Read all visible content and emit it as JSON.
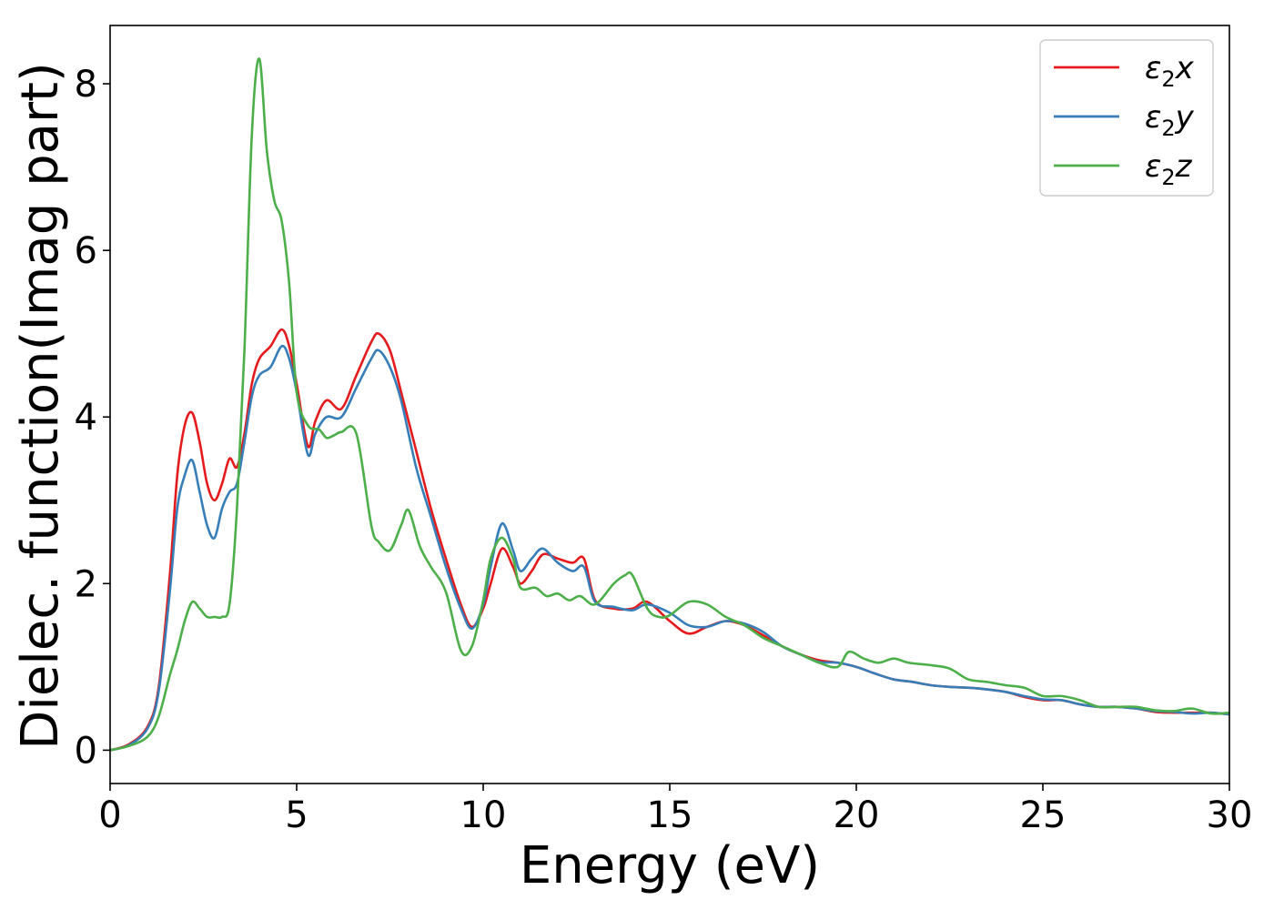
{
  "chart_data": {
    "type": "line",
    "title": "",
    "xlabel": "Energy (eV)",
    "ylabel": "Dielec. function(Imag part)",
    "xlim": [
      0,
      30
    ],
    "ylim": [
      -0.4,
      8.7
    ],
    "xticks": [
      0,
      5,
      10,
      15,
      20,
      25,
      30
    ],
    "yticks": [
      0,
      2,
      4,
      6,
      8
    ],
    "xtick_labels": [
      "0",
      "5",
      "10",
      "15",
      "20",
      "25",
      "30"
    ],
    "ytick_labels": [
      "0",
      "2",
      "4",
      "6",
      "8"
    ],
    "grid": false,
    "legend_position": "top-right",
    "series": [
      {
        "name": "ε₂x",
        "legend_base": "ε",
        "legend_sub": "2",
        "legend_var": "x",
        "color": "#e41a1c",
        "x": [
          0,
          0.5,
          1.0,
          1.3,
          1.6,
          1.8,
          2.0,
          2.2,
          2.4,
          2.6,
          2.8,
          3.0,
          3.2,
          3.4,
          3.6,
          3.8,
          4.0,
          4.3,
          4.6,
          4.8,
          5.0,
          5.3,
          5.5,
          5.8,
          6.2,
          6.6,
          7.0,
          7.2,
          7.5,
          7.8,
          8.2,
          8.6,
          9.0,
          9.4,
          9.7,
          10.0,
          10.2,
          10.5,
          10.8,
          11.0,
          11.3,
          11.6,
          12.0,
          12.4,
          12.7,
          13.0,
          13.5,
          14.0,
          14.4,
          15.0,
          15.5,
          16.0,
          16.5,
          17.0,
          17.5,
          18.0,
          18.5,
          19.0,
          19.5,
          20.0,
          20.5,
          21.0,
          21.5,
          22.0,
          22.5,
          23.0,
          23.5,
          24.0,
          24.5,
          25.0,
          25.5,
          26.0,
          26.5,
          27.0,
          27.5,
          28.0,
          28.5,
          29.0,
          29.5,
          30.0
        ],
        "y": [
          0.0,
          0.07,
          0.28,
          0.75,
          2.1,
          3.3,
          3.9,
          4.05,
          3.7,
          3.2,
          3.0,
          3.2,
          3.5,
          3.4,
          3.8,
          4.4,
          4.7,
          4.85,
          5.05,
          4.85,
          4.4,
          3.65,
          3.95,
          4.2,
          4.1,
          4.5,
          4.9,
          5.0,
          4.8,
          4.3,
          3.6,
          2.9,
          2.3,
          1.75,
          1.48,
          1.7,
          2.0,
          2.42,
          2.2,
          2.0,
          2.15,
          2.35,
          2.3,
          2.25,
          2.3,
          1.8,
          1.7,
          1.7,
          1.78,
          1.55,
          1.4,
          1.48,
          1.55,
          1.5,
          1.38,
          1.25,
          1.15,
          1.08,
          1.05,
          1.0,
          0.92,
          0.85,
          0.82,
          0.78,
          0.76,
          0.75,
          0.73,
          0.7,
          0.64,
          0.6,
          0.6,
          0.55,
          0.52,
          0.52,
          0.5,
          0.46,
          0.45,
          0.45,
          0.45,
          0.43
        ]
      },
      {
        "name": "ε₂y",
        "legend_base": "ε",
        "legend_sub": "2",
        "legend_var": "y",
        "color": "#377eb8",
        "x": [
          0,
          0.5,
          1.0,
          1.3,
          1.6,
          1.8,
          2.0,
          2.2,
          2.4,
          2.6,
          2.8,
          3.0,
          3.2,
          3.4,
          3.6,
          3.8,
          4.0,
          4.3,
          4.6,
          4.8,
          5.0,
          5.3,
          5.5,
          5.8,
          6.2,
          6.6,
          7.0,
          7.2,
          7.5,
          7.8,
          8.2,
          8.6,
          9.0,
          9.4,
          9.7,
          10.0,
          10.2,
          10.5,
          10.8,
          11.0,
          11.3,
          11.6,
          12.0,
          12.4,
          12.7,
          13.0,
          13.5,
          14.0,
          14.4,
          15.0,
          15.5,
          16.0,
          16.5,
          17.0,
          17.5,
          18.0,
          18.5,
          19.0,
          19.5,
          20.0,
          20.5,
          21.0,
          21.5,
          22.0,
          22.5,
          23.0,
          23.5,
          24.0,
          24.5,
          25.0,
          25.5,
          26.0,
          26.5,
          27.0,
          27.5,
          28.0,
          28.5,
          29.0,
          29.5,
          30.0
        ],
        "y": [
          0.0,
          0.06,
          0.26,
          0.7,
          1.9,
          2.9,
          3.3,
          3.48,
          3.1,
          2.7,
          2.55,
          2.9,
          3.1,
          3.2,
          3.7,
          4.25,
          4.5,
          4.6,
          4.85,
          4.7,
          4.3,
          3.55,
          3.8,
          4.0,
          4.0,
          4.35,
          4.7,
          4.8,
          4.6,
          4.2,
          3.4,
          2.8,
          2.2,
          1.7,
          1.46,
          1.75,
          2.2,
          2.72,
          2.4,
          2.15,
          2.3,
          2.42,
          2.25,
          2.15,
          2.2,
          1.78,
          1.72,
          1.68,
          1.75,
          1.65,
          1.5,
          1.48,
          1.55,
          1.52,
          1.42,
          1.25,
          1.15,
          1.06,
          1.05,
          1.0,
          0.92,
          0.85,
          0.82,
          0.78,
          0.76,
          0.75,
          0.73,
          0.7,
          0.65,
          0.61,
          0.6,
          0.55,
          0.52,
          0.52,
          0.5,
          0.47,
          0.46,
          0.44,
          0.45,
          0.43
        ]
      },
      {
        "name": "ε₂z",
        "legend_base": "ε",
        "legend_sub": "2",
        "legend_var": "z",
        "color": "#4daf4a",
        "x": [
          0,
          0.5,
          1.0,
          1.3,
          1.6,
          1.8,
          2.0,
          2.2,
          2.4,
          2.6,
          2.8,
          3.0,
          3.2,
          3.4,
          3.6,
          3.8,
          4.0,
          4.2,
          4.4,
          4.6,
          4.8,
          5.0,
          5.3,
          5.6,
          5.8,
          6.0,
          6.2,
          6.6,
          7.0,
          7.2,
          7.5,
          7.8,
          8.0,
          8.3,
          8.6,
          9.0,
          9.4,
          9.7,
          10.0,
          10.2,
          10.5,
          10.8,
          11.0,
          11.4,
          11.7,
          12.0,
          12.3,
          12.6,
          13.0,
          13.5,
          13.8,
          14.0,
          14.4,
          14.7,
          15.0,
          15.5,
          16.0,
          16.5,
          17.0,
          17.5,
          18.0,
          18.5,
          19.0,
          19.5,
          19.8,
          20.2,
          20.6,
          21.0,
          21.4,
          22.0,
          22.5,
          23.0,
          23.5,
          24.0,
          24.5,
          25.0,
          25.5,
          26.0,
          26.5,
          27.0,
          27.5,
          28.0,
          28.5,
          29.0,
          29.5,
          30.0
        ],
        "y": [
          0.0,
          0.05,
          0.16,
          0.4,
          0.9,
          1.2,
          1.55,
          1.78,
          1.7,
          1.6,
          1.6,
          1.6,
          1.75,
          2.9,
          4.8,
          7.4,
          8.3,
          7.2,
          6.6,
          6.35,
          5.6,
          4.3,
          3.9,
          3.85,
          3.75,
          3.78,
          3.82,
          3.8,
          2.7,
          2.5,
          2.4,
          2.7,
          2.88,
          2.45,
          2.2,
          1.9,
          1.2,
          1.25,
          1.8,
          2.3,
          2.55,
          2.3,
          1.95,
          1.95,
          1.85,
          1.88,
          1.8,
          1.85,
          1.75,
          2.0,
          2.1,
          2.1,
          1.7,
          1.6,
          1.62,
          1.78,
          1.75,
          1.6,
          1.5,
          1.35,
          1.25,
          1.15,
          1.05,
          1.0,
          1.18,
          1.1,
          1.05,
          1.1,
          1.05,
          1.02,
          0.98,
          0.85,
          0.82,
          0.78,
          0.75,
          0.65,
          0.65,
          0.6,
          0.52,
          0.52,
          0.52,
          0.48,
          0.47,
          0.5,
          0.44,
          0.45
        ]
      }
    ]
  }
}
